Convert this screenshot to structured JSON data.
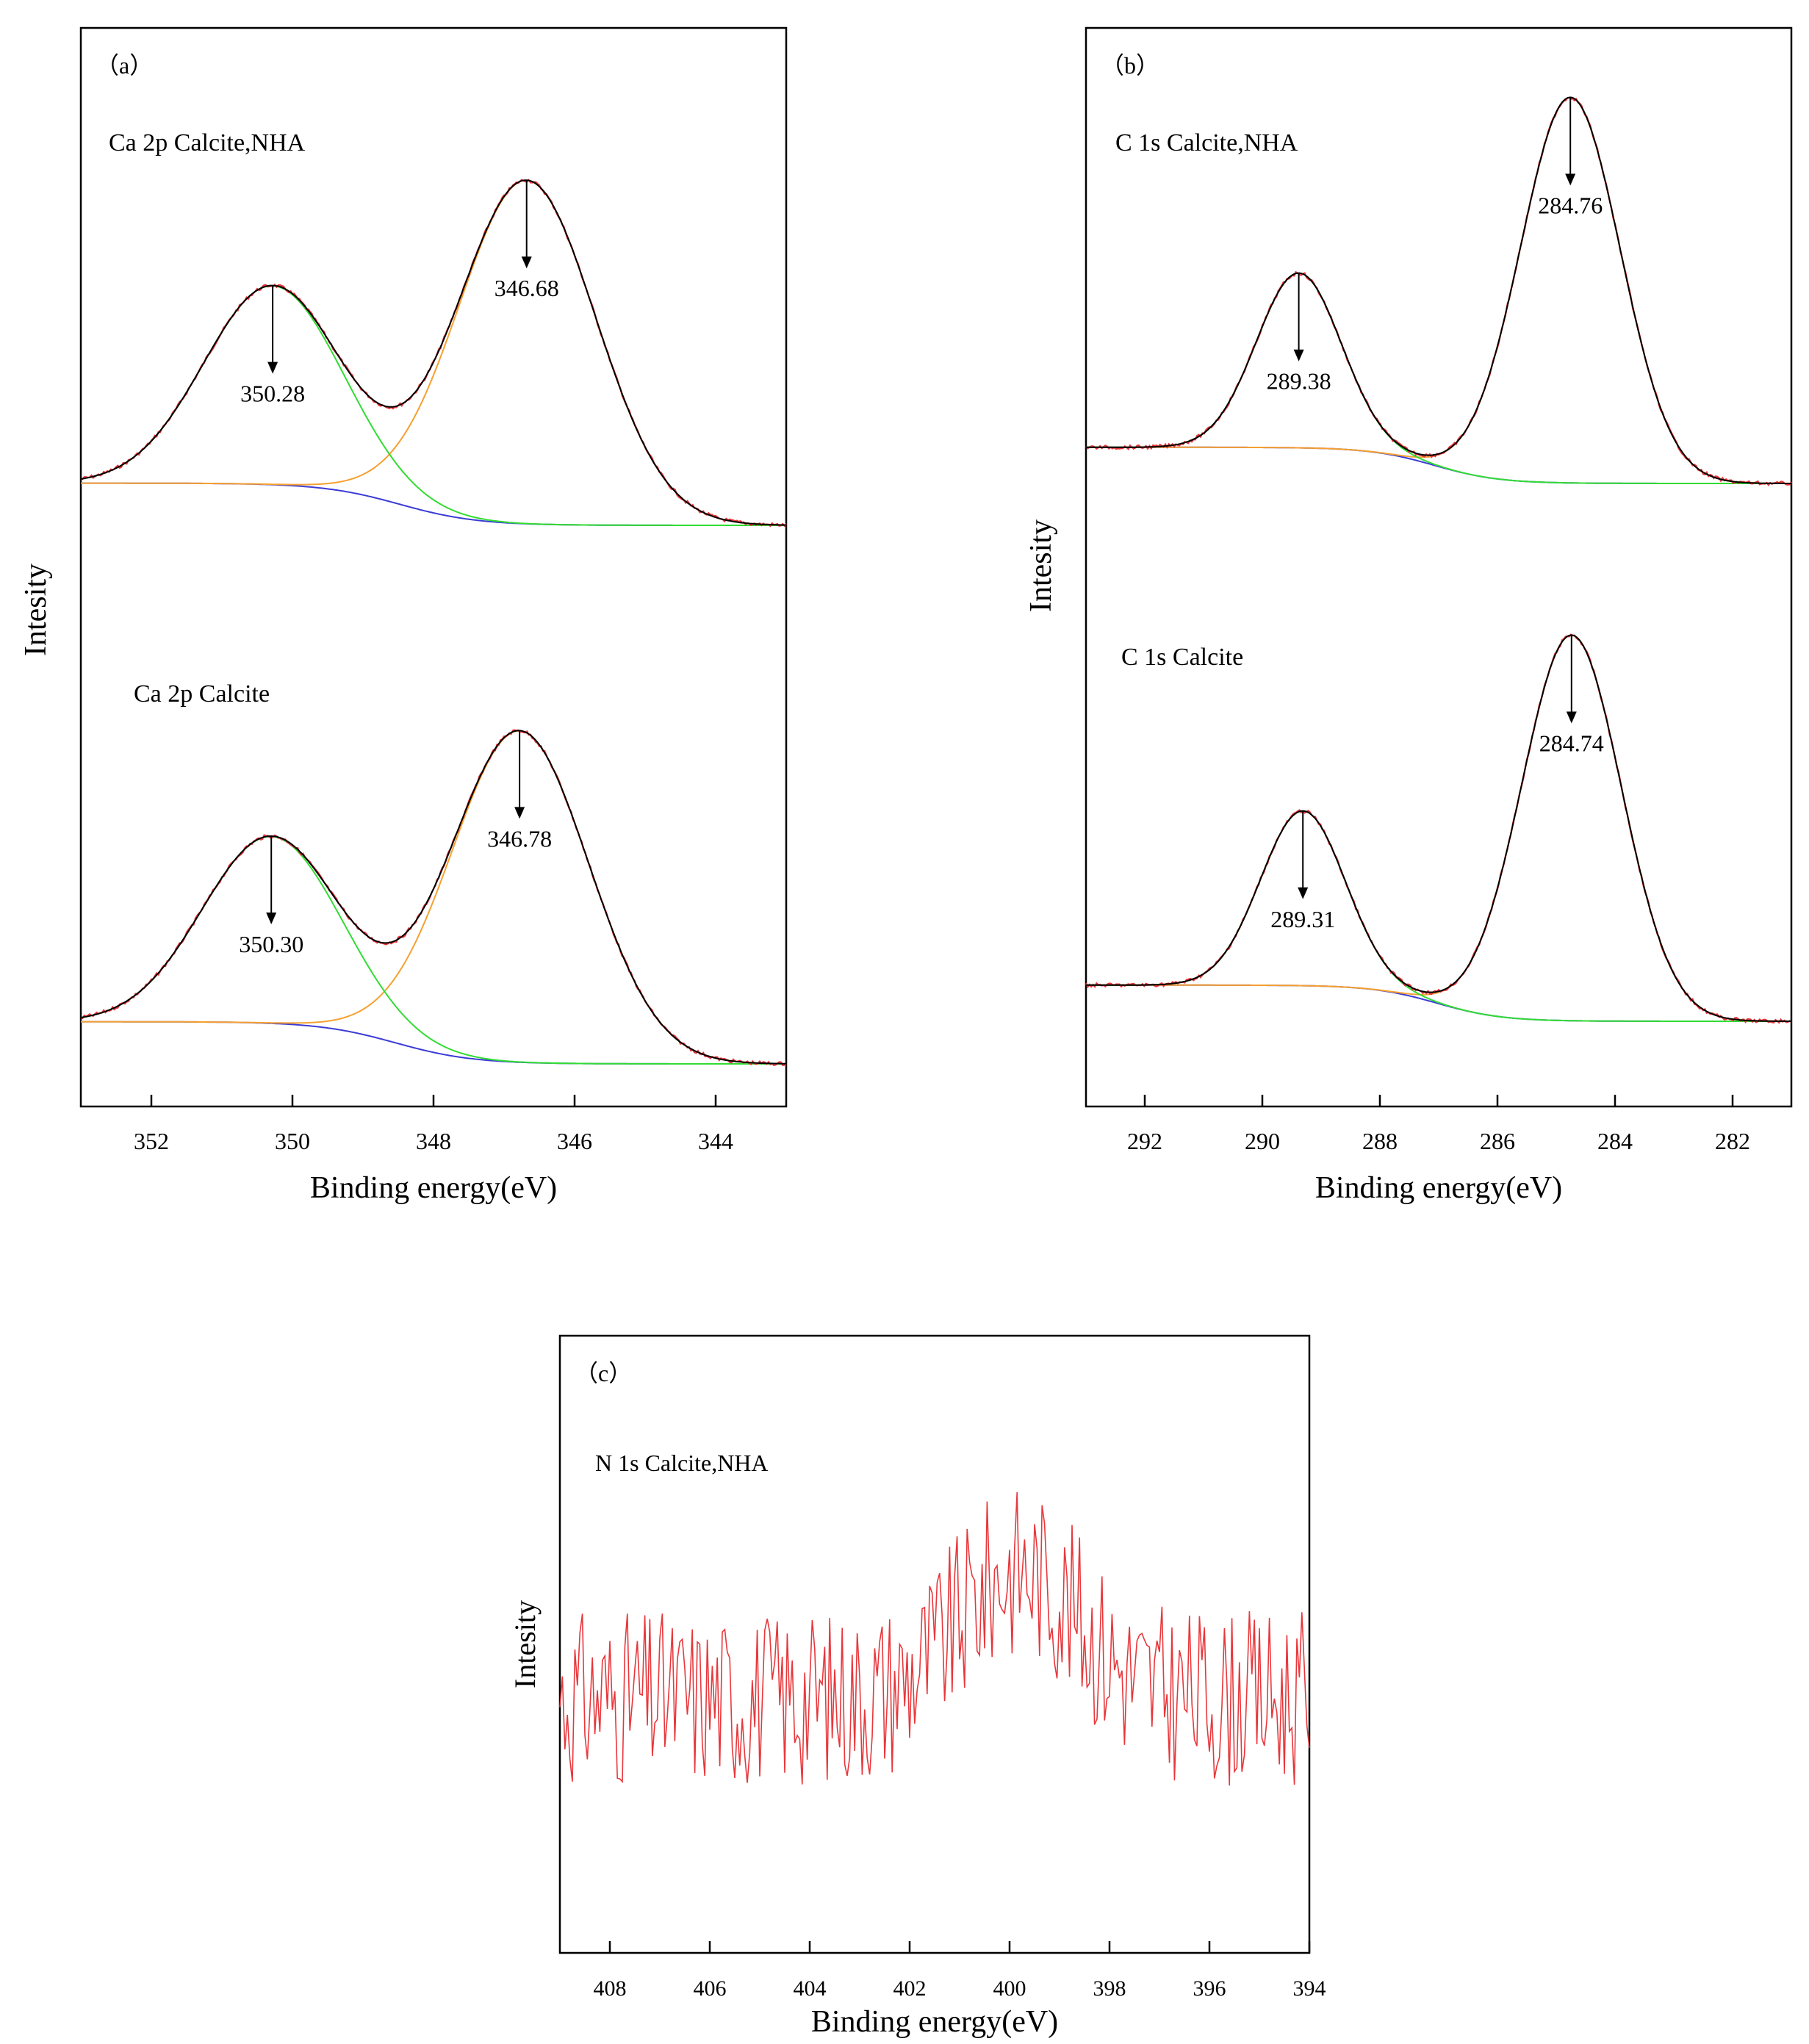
{
  "chart_data": [
    {
      "id": "a",
      "type": "line",
      "panel_label": "（a）",
      "xlabel": "Binding energy(eV)",
      "ylabel": "Intesity",
      "xlim": [
        353,
        343
      ],
      "xticks": [
        352,
        350,
        348,
        346,
        344
      ],
      "tick_labels": [
        "352",
        "350",
        "348",
        "346",
        "344"
      ],
      "y_tick_labels": false,
      "series_colors": {
        "raw": "#e8373b",
        "fit": "#000000",
        "peak1": "#32dc32",
        "peak2": "#f5a030",
        "background": "#3b3bd6",
        "arrow": "#000000"
      },
      "spectra": [
        {
          "name": "Ca 2p Calcite,NHA",
          "peaks": [
            {
              "position": 350.28,
              "label": "350.28",
              "height": 66,
              "fwhm": 2.3
            },
            {
              "position": 346.68,
              "label": "346.68",
              "height": 114,
              "fwhm": 2.3
            }
          ],
          "background": {
            "high": 14,
            "low": 0
          }
        },
        {
          "name": "Ca 2p Calcite",
          "peaks": [
            {
              "position": 350.3,
              "label": "350.30",
              "height": 62,
              "fwhm": 2.3
            },
            {
              "position": 346.78,
              "label": "346.78",
              "height": 110,
              "fwhm": 2.3
            }
          ],
          "background": {
            "high": 14,
            "low": 0
          }
        }
      ]
    },
    {
      "id": "b",
      "type": "line",
      "panel_label": "（b）",
      "xlabel": "Binding energy(eV)",
      "ylabel": "Intesity",
      "xlim": [
        293,
        281
      ],
      "xticks": [
        292,
        290,
        288,
        286,
        284,
        282
      ],
      "tick_labels": [
        "292",
        "290",
        "288",
        "286",
        "284",
        "282"
      ],
      "y_tick_labels": false,
      "series_colors": {
        "raw": "#e8373b",
        "fit": "#000000",
        "peak1": "#32dc32",
        "peak2": "#f5a030",
        "background": "#3b3bd6",
        "arrow": "#000000"
      },
      "spectra": [
        {
          "name": "C 1s Calcite,NHA",
          "peaks": [
            {
              "position": 289.38,
              "label": "289.38",
              "height": 58,
              "fwhm": 1.7
            },
            {
              "position": 284.76,
              "label": "284.76",
              "height": 128,
              "fwhm": 2.0
            }
          ],
          "background": {
            "high": 12,
            "low": 0
          }
        },
        {
          "name": "C 1s Calcite",
          "peaks": [
            {
              "position": 289.31,
              "label": "289.31",
              "height": 58,
              "fwhm": 1.7
            },
            {
              "position": 284.74,
              "label": "284.74",
              "height": 128,
              "fwhm": 2.0
            }
          ],
          "background": {
            "high": 12,
            "low": 0
          }
        }
      ]
    },
    {
      "id": "c",
      "type": "line",
      "panel_label": "（c）",
      "xlabel": "Binding energy(eV)",
      "ylabel": "Intesity",
      "xlim": [
        409,
        394
      ],
      "xticks": [
        408,
        406,
        404,
        402,
        400,
        398,
        396,
        394
      ],
      "tick_labels": [
        "408",
        "406",
        "404",
        "402",
        "400",
        "398",
        "396",
        "394"
      ],
      "y_tick_labels": false,
      "series": [
        {
          "name": "N 1s Calcite,NHA",
          "color": "#e8373b"
        }
      ]
    }
  ]
}
